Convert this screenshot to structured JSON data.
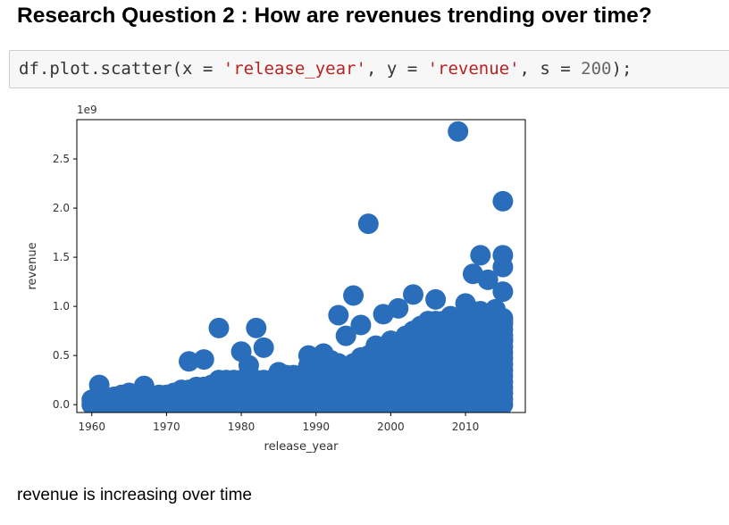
{
  "heading": "Research Question 2 : How are revenues trending over time?",
  "code": {
    "p1": "df.plot.scatter(x = ",
    "s1": "'release_year'",
    "p2": ", y = ",
    "s2": "'revenue'",
    "p3": ", s = ",
    "n1": "200",
    "p4": ");"
  },
  "colors": {
    "marker": "#2a6ebb",
    "string": "#ba2121",
    "number": "#666666"
  },
  "chart_data": {
    "type": "scatter",
    "xlabel": "release_year",
    "ylabel": "revenue",
    "offset_text": "1e9",
    "xlim": [
      1958,
      2018
    ],
    "ylim": [
      -0.08,
      2.9
    ],
    "xticks": [
      1960,
      1970,
      1980,
      1990,
      2000,
      2010
    ],
    "xtick_labels": [
      "1960",
      "1970",
      "1980",
      "1990",
      "2000",
      "2010"
    ],
    "yticks": [
      0.0,
      0.5,
      1.0,
      1.5,
      2.0,
      2.5
    ],
    "ytick_labels": [
      "0.0",
      "0.5",
      "1.0",
      "1.5",
      "2.0",
      "2.5"
    ],
    "marker_size": 200,
    "points": [
      [
        2009,
        2.78
      ],
      [
        2015,
        2.07
      ],
      [
        1997,
        1.84
      ],
      [
        2012,
        1.52
      ],
      [
        2015,
        1.52
      ],
      [
        2015,
        1.4
      ],
      [
        2011,
        1.33
      ],
      [
        2013,
        1.27
      ],
      [
        2015,
        1.15
      ],
      [
        2003,
        1.12
      ],
      [
        1995,
        1.11
      ],
      [
        2006,
        1.07
      ],
      [
        2001,
        0.98
      ],
      [
        2010,
        1.03
      ],
      [
        2014,
        0.97
      ],
      [
        2012,
        0.95
      ],
      [
        1999,
        0.92
      ],
      [
        1993,
        0.91
      ],
      [
        1996,
        0.81
      ],
      [
        1994,
        0.7
      ],
      [
        1977,
        0.78
      ],
      [
        1982,
        0.78
      ],
      [
        1983,
        0.58
      ],
      [
        1980,
        0.54
      ],
      [
        1973,
        0.44
      ],
      [
        1975,
        0.46
      ],
      [
        1981,
        0.4
      ],
      [
        1961,
        0.2
      ],
      [
        1967,
        0.19
      ],
      [
        1985,
        0.33
      ],
      [
        1989,
        0.5
      ],
      [
        1991,
        0.52
      ],
      [
        1998,
        0.6
      ],
      [
        2000,
        0.65
      ],
      [
        2005,
        0.85
      ],
      [
        2008,
        0.9
      ],
      [
        2015,
        0.85
      ],
      [
        2013,
        0.75
      ],
      [
        2014,
        0.6
      ],
      [
        2015,
        0.66
      ]
    ],
    "bands": [
      [
        1960,
        0.05
      ],
      [
        1961,
        0.06
      ],
      [
        1962,
        0.05
      ],
      [
        1963,
        0.08
      ],
      [
        1964,
        0.1
      ],
      [
        1965,
        0.12
      ],
      [
        1966,
        0.1
      ],
      [
        1967,
        0.12
      ],
      [
        1968,
        0.08
      ],
      [
        1969,
        0.1
      ],
      [
        1970,
        0.1
      ],
      [
        1971,
        0.12
      ],
      [
        1972,
        0.15
      ],
      [
        1973,
        0.15
      ],
      [
        1974,
        0.18
      ],
      [
        1975,
        0.18
      ],
      [
        1976,
        0.2
      ],
      [
        1977,
        0.25
      ],
      [
        1978,
        0.25
      ],
      [
        1979,
        0.25
      ],
      [
        1980,
        0.25
      ],
      [
        1981,
        0.22
      ],
      [
        1982,
        0.25
      ],
      [
        1983,
        0.25
      ],
      [
        1984,
        0.25
      ],
      [
        1985,
        0.28
      ],
      [
        1986,
        0.3
      ],
      [
        1987,
        0.3
      ],
      [
        1988,
        0.3
      ],
      [
        1989,
        0.4
      ],
      [
        1990,
        0.42
      ],
      [
        1991,
        0.45
      ],
      [
        1992,
        0.45
      ],
      [
        1993,
        0.42
      ],
      [
        1994,
        0.38
      ],
      [
        1995,
        0.42
      ],
      [
        1996,
        0.48
      ],
      [
        1997,
        0.5
      ],
      [
        1998,
        0.52
      ],
      [
        1999,
        0.55
      ],
      [
        2000,
        0.62
      ],
      [
        2001,
        0.62
      ],
      [
        2002,
        0.7
      ],
      [
        2003,
        0.75
      ],
      [
        2004,
        0.8
      ],
      [
        2005,
        0.82
      ],
      [
        2006,
        0.85
      ],
      [
        2007,
        0.85
      ],
      [
        2008,
        0.88
      ],
      [
        2009,
        0.85
      ],
      [
        2010,
        0.92
      ],
      [
        2011,
        0.95
      ],
      [
        2012,
        0.95
      ],
      [
        2013,
        0.9
      ],
      [
        2014,
        0.88
      ],
      [
        2015,
        0.88
      ]
    ]
  },
  "conclusion": "revenue is increasing over time"
}
